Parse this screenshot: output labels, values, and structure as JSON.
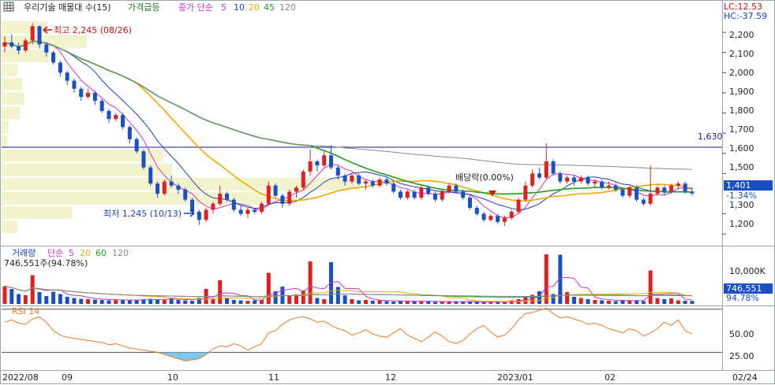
{
  "header": {
    "settings_icon": "grid-settings-icon",
    "symbol": "우리기술 매물대 수(15)",
    "indicator": "가격급등",
    "ma_label": "종가 단순",
    "ma_periods": [
      "5",
      "10",
      "20",
      "45",
      "120"
    ],
    "lc_label": "LC:12.53",
    "hc_label": "HC:-37.59"
  },
  "price_panel": {
    "yticks": [
      "2,200",
      "2,100",
      "2,000",
      "1,900",
      "1,800",
      "1,700",
      "1,600",
      "1,500",
      "1,300",
      "1,200"
    ],
    "hline_label": "1,630",
    "current_price": "1,401",
    "current_change": "-1.34%",
    "high_note": "최고 2,245 (08/26)",
    "low_note": "최저 1,245 (10/13)",
    "dividend_note": "배당락(0.00%)"
  },
  "volume_panel": {
    "label": "거래량",
    "ma_label": "단순",
    "ma_periods": [
      "5",
      "20",
      "60",
      "120"
    ],
    "current_volume": "746,551주(94.78%)",
    "ytick": "10,000K",
    "current_value": "746,551",
    "current_ratio": "94.78%"
  },
  "rsi_panel": {
    "label": "RSI 14",
    "yticks": [
      "50.00",
      "25.00"
    ]
  },
  "time_axis": {
    "labels": [
      "2022/08",
      "09",
      "10",
      "11",
      "12",
      "2023/01",
      "02",
      "02/24"
    ]
  },
  "colors": {
    "up": "#e02020",
    "down": "#1a4fc8",
    "ma5": "#cc33cc",
    "ma10": "#1f3fbf",
    "ma20": "#f0a800",
    "ma45": "#20a020",
    "ma120": "#8a8a8a",
    "hline": "#1a1a9a",
    "profile": "#f2f2cc",
    "rsi": "#e87a20",
    "rsi_fill": "#7ec8ee"
  },
  "chart_data": [
    {
      "type": "candlestick",
      "title": "우리기술",
      "ylim": [
        1150,
        2290
      ],
      "candles": [
        [
          2130,
          2180,
          2100,
          2150
        ],
        [
          2150,
          2190,
          2120,
          2130
        ],
        [
          2130,
          2150,
          2090,
          2110
        ],
        [
          2110,
          2170,
          2100,
          2160
        ],
        [
          2160,
          2245,
          2140,
          2230
        ],
        [
          2230,
          2235,
          2120,
          2140
        ],
        [
          2140,
          2150,
          2080,
          2100
        ],
        [
          2100,
          2110,
          2040,
          2050
        ],
        [
          2050,
          2060,
          1980,
          2000
        ],
        [
          2000,
          2010,
          1940,
          1960
        ],
        [
          1960,
          1970,
          1900,
          1920
        ],
        [
          1920,
          1930,
          1860,
          1880
        ],
        [
          1880,
          1920,
          1870,
          1900
        ],
        [
          1900,
          1910,
          1840,
          1860
        ],
        [
          1860,
          1870,
          1800,
          1810
        ],
        [
          1810,
          1820,
          1750,
          1770
        ],
        [
          1770,
          1800,
          1760,
          1790
        ],
        [
          1790,
          1800,
          1720,
          1730
        ],
        [
          1730,
          1740,
          1650,
          1670
        ],
        [
          1670,
          1680,
          1600,
          1610
        ],
        [
          1610,
          1620,
          1520,
          1530
        ],
        [
          1530,
          1540,
          1440,
          1450
        ],
        [
          1450,
          1460,
          1380,
          1400
        ],
        [
          1400,
          1470,
          1390,
          1460
        ],
        [
          1460,
          1490,
          1430,
          1440
        ],
        [
          1440,
          1450,
          1400,
          1420
        ],
        [
          1420,
          1430,
          1360,
          1370
        ],
        [
          1370,
          1380,
          1300,
          1310
        ],
        [
          1310,
          1320,
          1245,
          1270
        ],
        [
          1270,
          1330,
          1260,
          1320
        ],
        [
          1320,
          1360,
          1300,
          1350
        ],
        [
          1350,
          1440,
          1340,
          1400
        ],
        [
          1400,
          1410,
          1360,
          1370
        ],
        [
          1370,
          1380,
          1310,
          1320
        ],
        [
          1320,
          1340,
          1290,
          1300
        ],
        [
          1300,
          1330,
          1280,
          1320
        ],
        [
          1320,
          1330,
          1300,
          1310
        ],
        [
          1310,
          1360,
          1300,
          1350
        ],
        [
          1350,
          1460,
          1340,
          1440
        ],
        [
          1440,
          1450,
          1380,
          1390
        ],
        [
          1390,
          1400,
          1330,
          1350
        ],
        [
          1350,
          1420,
          1340,
          1410
        ],
        [
          1410,
          1440,
          1380,
          1430
        ],
        [
          1430,
          1520,
          1420,
          1510
        ],
        [
          1510,
          1620,
          1490,
          1560
        ],
        [
          1560,
          1570,
          1510,
          1540
        ],
        [
          1540,
          1610,
          1530,
          1590
        ],
        [
          1590,
          1640,
          1520,
          1530
        ],
        [
          1530,
          1540,
          1470,
          1490
        ],
        [
          1490,
          1500,
          1440,
          1460
        ],
        [
          1460,
          1500,
          1450,
          1490
        ],
        [
          1490,
          1500,
          1440,
          1450
        ],
        [
          1450,
          1470,
          1420,
          1460
        ],
        [
          1460,
          1470,
          1430,
          1440
        ],
        [
          1440,
          1480,
          1430,
          1470
        ],
        [
          1470,
          1480,
          1440,
          1450
        ],
        [
          1450,
          1460,
          1400,
          1410
        ],
        [
          1410,
          1420,
          1370,
          1380
        ],
        [
          1380,
          1420,
          1370,
          1410
        ],
        [
          1410,
          1420,
          1370,
          1380
        ],
        [
          1380,
          1440,
          1370,
          1430
        ],
        [
          1430,
          1440,
          1390,
          1400
        ],
        [
          1400,
          1410,
          1360,
          1370
        ],
        [
          1370,
          1420,
          1360,
          1410
        ],
        [
          1410,
          1450,
          1400,
          1440
        ],
        [
          1440,
          1450,
          1400,
          1410
        ],
        [
          1410,
          1420,
          1370,
          1380
        ],
        [
          1380,
          1390,
          1320,
          1330
        ],
        [
          1330,
          1340,
          1290,
          1300
        ],
        [
          1300,
          1310,
          1260,
          1270
        ],
        [
          1270,
          1300,
          1260,
          1290
        ],
        [
          1290,
          1300,
          1250,
          1260
        ],
        [
          1260,
          1290,
          1240,
          1280
        ],
        [
          1280,
          1320,
          1270,
          1310
        ],
        [
          1310,
          1380,
          1300,
          1370
        ],
        [
          1370,
          1460,
          1360,
          1440
        ],
        [
          1440,
          1520,
          1430,
          1500
        ],
        [
          1500,
          1530,
          1470,
          1480
        ],
        [
          1480,
          1650,
          1470,
          1560
        ],
        [
          1560,
          1570,
          1490,
          1500
        ],
        [
          1500,
          1510,
          1450,
          1460
        ],
        [
          1460,
          1490,
          1450,
          1480
        ],
        [
          1480,
          1490,
          1440,
          1460
        ],
        [
          1460,
          1490,
          1450,
          1480
        ],
        [
          1480,
          1490,
          1440,
          1450
        ],
        [
          1450,
          1470,
          1430,
          1460
        ],
        [
          1460,
          1470,
          1420,
          1430
        ],
        [
          1430,
          1460,
          1420,
          1440
        ],
        [
          1440,
          1450,
          1410,
          1420
        ],
        [
          1420,
          1430,
          1380,
          1390
        ],
        [
          1390,
          1440,
          1380,
          1430
        ],
        [
          1430,
          1440,
          1360,
          1370
        ],
        [
          1370,
          1380,
          1340,
          1350
        ],
        [
          1350,
          1540,
          1340,
          1400
        ],
        [
          1400,
          1440,
          1390,
          1430
        ],
        [
          1430,
          1440,
          1390,
          1410
        ],
        [
          1410,
          1450,
          1400,
          1440
        ],
        [
          1440,
          1460,
          1420,
          1450
        ],
        [
          1450,
          1460,
          1400,
          1410
        ],
        [
          1410,
          1430,
          1390,
          1401
        ]
      ],
      "ma_periods": [
        5,
        10,
        20,
        45,
        120
      ],
      "hline": 1630
    },
    {
      "type": "bar",
      "title": "거래량",
      "ylabel": "K",
      "ylim": [
        0,
        14000
      ],
      "values": [
        4500,
        3800,
        2500,
        2200,
        7300,
        3000,
        2000,
        3100,
        2500,
        1800,
        1500,
        1300,
        1200,
        1100,
        1000,
        900,
        1000,
        1100,
        900,
        1000,
        1200,
        1300,
        1100,
        1000,
        1600,
        1000,
        900,
        800,
        1500,
        3800,
        1200,
        6000,
        1500,
        1000,
        900,
        800,
        900,
        1000,
        7900,
        3200,
        4400,
        2000,
        2400,
        3400,
        10800,
        1500,
        1200,
        10600,
        4300,
        2200,
        1200,
        900,
        1000,
        800,
        900,
        700,
        600,
        700,
        800,
        600,
        700,
        600,
        500,
        600,
        700,
        600,
        500,
        600,
        500,
        400,
        500,
        600,
        500,
        900,
        1200,
        1800,
        2300,
        3200,
        12600,
        2500,
        12500,
        3000,
        1800,
        1500,
        1200,
        1000,
        900,
        800,
        700,
        1000,
        900,
        800,
        700,
        8500,
        1500,
        1200,
        1400,
        900,
        800,
        747
      ],
      "ma_periods": [
        5,
        20,
        60,
        120
      ]
    },
    {
      "type": "line",
      "title": "RSI 14",
      "ylim": [
        15,
        72
      ],
      "values": [
        58,
        60,
        57,
        56,
        61,
        63,
        58,
        50,
        46,
        44,
        43,
        42,
        41,
        40,
        39,
        37,
        38,
        36,
        34,
        33,
        32,
        31,
        30,
        28,
        26,
        24,
        22,
        23,
        24,
        28,
        33,
        36,
        35,
        38,
        36,
        32,
        35,
        38,
        48,
        50,
        56,
        60,
        62,
        63,
        61,
        58,
        59,
        55,
        52,
        50,
        46,
        48,
        51,
        47,
        45,
        44,
        48,
        52,
        46,
        43,
        40,
        44,
        49,
        45,
        40,
        38,
        41,
        47,
        52,
        55,
        49,
        44,
        46,
        52,
        60,
        66,
        67,
        69,
        71,
        66,
        62,
        63,
        61,
        59,
        56,
        57,
        55,
        52,
        50,
        48,
        52,
        50,
        45,
        48,
        52,
        58,
        55,
        60,
        50,
        47
      ]
    }
  ]
}
